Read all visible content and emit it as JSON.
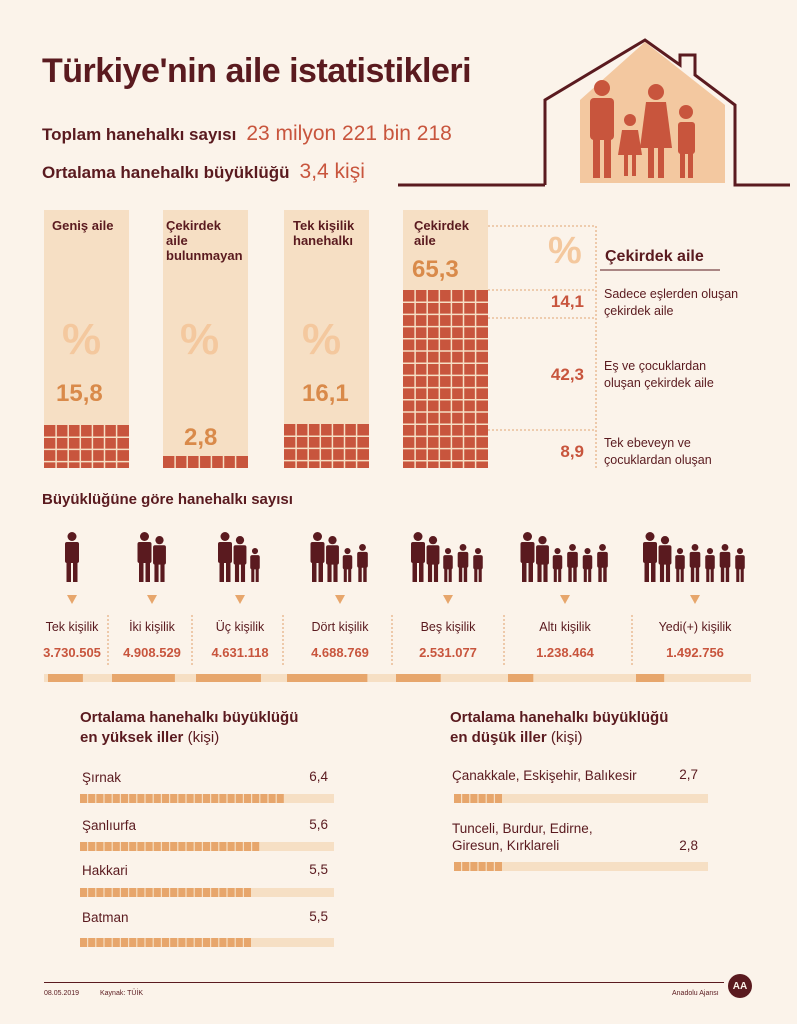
{
  "title": "Türkiye'nin aile istatistikleri",
  "summary": {
    "total_label": "Toplam hanehalkı sayısı",
    "total_value": "23 milyon 221 bin 218",
    "avg_label": "Ortalama hanehalkı büyüklüğü",
    "avg_value": "3,4 kişi"
  },
  "family_types": {
    "percent_symbol": "%",
    "columns": [
      {
        "label": "Geniş aile",
        "value_text": "15,8",
        "value": 15.8
      },
      {
        "label": "Çekirdek aile bulunmayan",
        "value_text": "2,8",
        "value": 2.8
      },
      {
        "label": "Tek kişilik hanehalkı",
        "value_text": "16,1",
        "value": 16.1
      },
      {
        "label": "Çekirdek aile",
        "value_text": "65,3",
        "value": 65.3
      }
    ],
    "breakdown_title": "Çekirdek aile",
    "breakdown": [
      {
        "value_text": "14,1",
        "label": "Sadece eşlerden oluşan çekirdek aile"
      },
      {
        "value_text": "42,3",
        "label": "Eş ve çocuklardan oluşan çekirdek aile"
      },
      {
        "value_text": "8,9",
        "label": "Tek ebeveyn ve çocuklardan oluşan"
      }
    ]
  },
  "household_size": {
    "title": "Büyüklüğüne göre hanehalkı sayısı",
    "items": [
      {
        "label": "Tek kişilik",
        "value_text": "3.730.505",
        "value": 3730505,
        "people": 1
      },
      {
        "label": "İki kişilik",
        "value_text": "4.908.529",
        "value": 4908529,
        "people": 2
      },
      {
        "label": "Üç kişilik",
        "value_text": "4.631.118",
        "value": 4631118,
        "people": 3
      },
      {
        "label": "Dört kişilik",
        "value_text": "4.688.769",
        "value": 4688769,
        "people": 4
      },
      {
        "label": "Beş kişilik",
        "value_text": "2.531.077",
        "value": 2531077,
        "people": 5
      },
      {
        "label": "Altı kişilik",
        "value_text": "1.238.464",
        "value": 1238464,
        "people": 6
      },
      {
        "label": "Yedi(+) kişilik",
        "value_text": "1.492.756",
        "value": 1492756,
        "people": 7
      }
    ]
  },
  "provinces_high": {
    "title_bold_1": "Ortalama hanehalkı büyüklüğü",
    "title_bold_2": "en yüksek iller",
    "title_light": "(kişi)",
    "items": [
      {
        "name": "Şırnak",
        "value_text": "6,4",
        "value": 6.4
      },
      {
        "name": "Şanlıurfa",
        "value_text": "5,6",
        "value": 5.6
      },
      {
        "name": "Hakkari",
        "value_text": "5,5",
        "value": 5.5
      },
      {
        "name": "Batman",
        "value_text": "5,5",
        "value": 5.5
      }
    ]
  },
  "provinces_low": {
    "title_bold_1": "Ortalama hanehalkı büyüklüğü",
    "title_bold_2": "en düşük iller",
    "title_light": "(kişi)",
    "items": [
      {
        "name": "Çanakkale, Eskişehir, Balıkesir",
        "value_text": "2,7",
        "value": 2.7
      },
      {
        "name": "Tunceli, Burdur, Edirne, Giresun, Kırklareli",
        "value_text": "2,8",
        "value": 2.8
      }
    ]
  },
  "footer": {
    "date": "08.05.2019",
    "source": "Kaynak: TÜİK",
    "agency": "Anadolu Ajansı",
    "logo_text": "AA"
  },
  "colors": {
    "dark": "#5a1a1f",
    "accent": "#c8553d",
    "light": "#f6dfc4",
    "orange": "#e7a66c"
  },
  "chart_data": [
    {
      "type": "bar",
      "categories": [
        "Geniş aile",
        "Çekirdek aile bulunmayan",
        "Tek kişilik hanehalkı",
        "Çekirdek aile"
      ],
      "values": [
        15.8,
        2.8,
        16.1,
        65.3
      ],
      "ylabel": "%",
      "ylim": [
        0,
        100
      ]
    },
    {
      "type": "bar",
      "title": "Büyüklüğüne göre hanehalkı sayısı",
      "categories": [
        "Tek kişilik",
        "İki kişilik",
        "Üç kişilik",
        "Dört kişilik",
        "Beş kişilik",
        "Altı kişilik",
        "Yedi(+) kişilik"
      ],
      "values": [
        3730505,
        4908529,
        4631118,
        4688769,
        2531077,
        1238464,
        1492756
      ]
    },
    {
      "type": "bar",
      "categories": [
        "Şırnak",
        "Şanlıurfa",
        "Hakkari",
        "Batman"
      ],
      "values": [
        6.4,
        5.6,
        5.5,
        5.5
      ]
    },
    {
      "type": "bar",
      "categories": [
        "Çanakkale, Eskişehir, Balıkesir",
        "Tunceli, Burdur, Edirne, Giresun, Kırklareli"
      ],
      "values": [
        2.7,
        2.8
      ]
    }
  ]
}
